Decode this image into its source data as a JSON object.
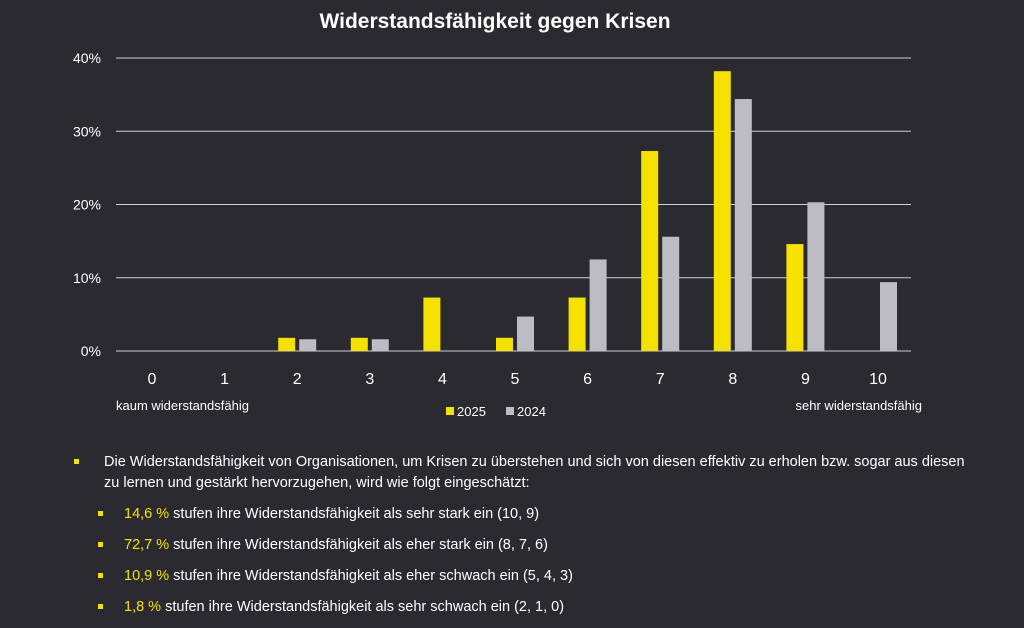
{
  "colors": {
    "background": "#2b2a31",
    "series_2025": "#f5e100",
    "series_2024": "#bdbcc4",
    "accent": "#f5e100"
  },
  "chart_data": {
    "type": "bar",
    "title": "Widerstandsfähigkeit gegen Krisen",
    "categories": [
      "0",
      "1",
      "2",
      "3",
      "4",
      "5",
      "6",
      "7",
      "8",
      "9",
      "10"
    ],
    "series": [
      {
        "name": "2025",
        "values": [
          0,
          0,
          1.8,
          1.8,
          7.3,
          1.8,
          7.3,
          27.3,
          38.2,
          14.6,
          0
        ]
      },
      {
        "name": "2024",
        "values": [
          0,
          0,
          1.6,
          1.6,
          0,
          4.7,
          12.5,
          15.6,
          34.4,
          20.3,
          9.4
        ]
      }
    ],
    "ylim": [
      0,
      40
    ],
    "yticks": [
      "0%",
      "10%",
      "20%",
      "30%",
      "40%"
    ],
    "ytick_values": [
      0,
      10,
      20,
      30,
      40
    ],
    "xlabel_left": "kaum widerstandsfähig",
    "xlabel_right": "sehr widerstandsfähig",
    "grid": true,
    "legend": "bottom-center"
  },
  "bullets": {
    "intro": "Die Widerstandsfähigkeit von Organisationen, um Krisen zu überstehen und sich von diesen effektiv zu erholen bzw. sogar aus diesen zu lernen und gestärkt hervorzugehen, wird wie folgt eingeschätzt:",
    "items": [
      {
        "value": "14,6 %",
        "text": " stufen ihre Widerstandsfähigkeit als sehr stark ein (10, 9)"
      },
      {
        "value": "72,7 %",
        "text": " stufen ihre Widerstandsfähigkeit als eher stark ein (8, 7, 6)"
      },
      {
        "value": "10,9 %",
        "text": " stufen ihre Widerstandsfähigkeit als eher schwach ein (5, 4, 3)"
      },
      {
        "value": "1,8 %",
        "text": " stufen ihre Widerstandsfähigkeit als sehr schwach ein (2, 1, 0)"
      }
    ]
  }
}
